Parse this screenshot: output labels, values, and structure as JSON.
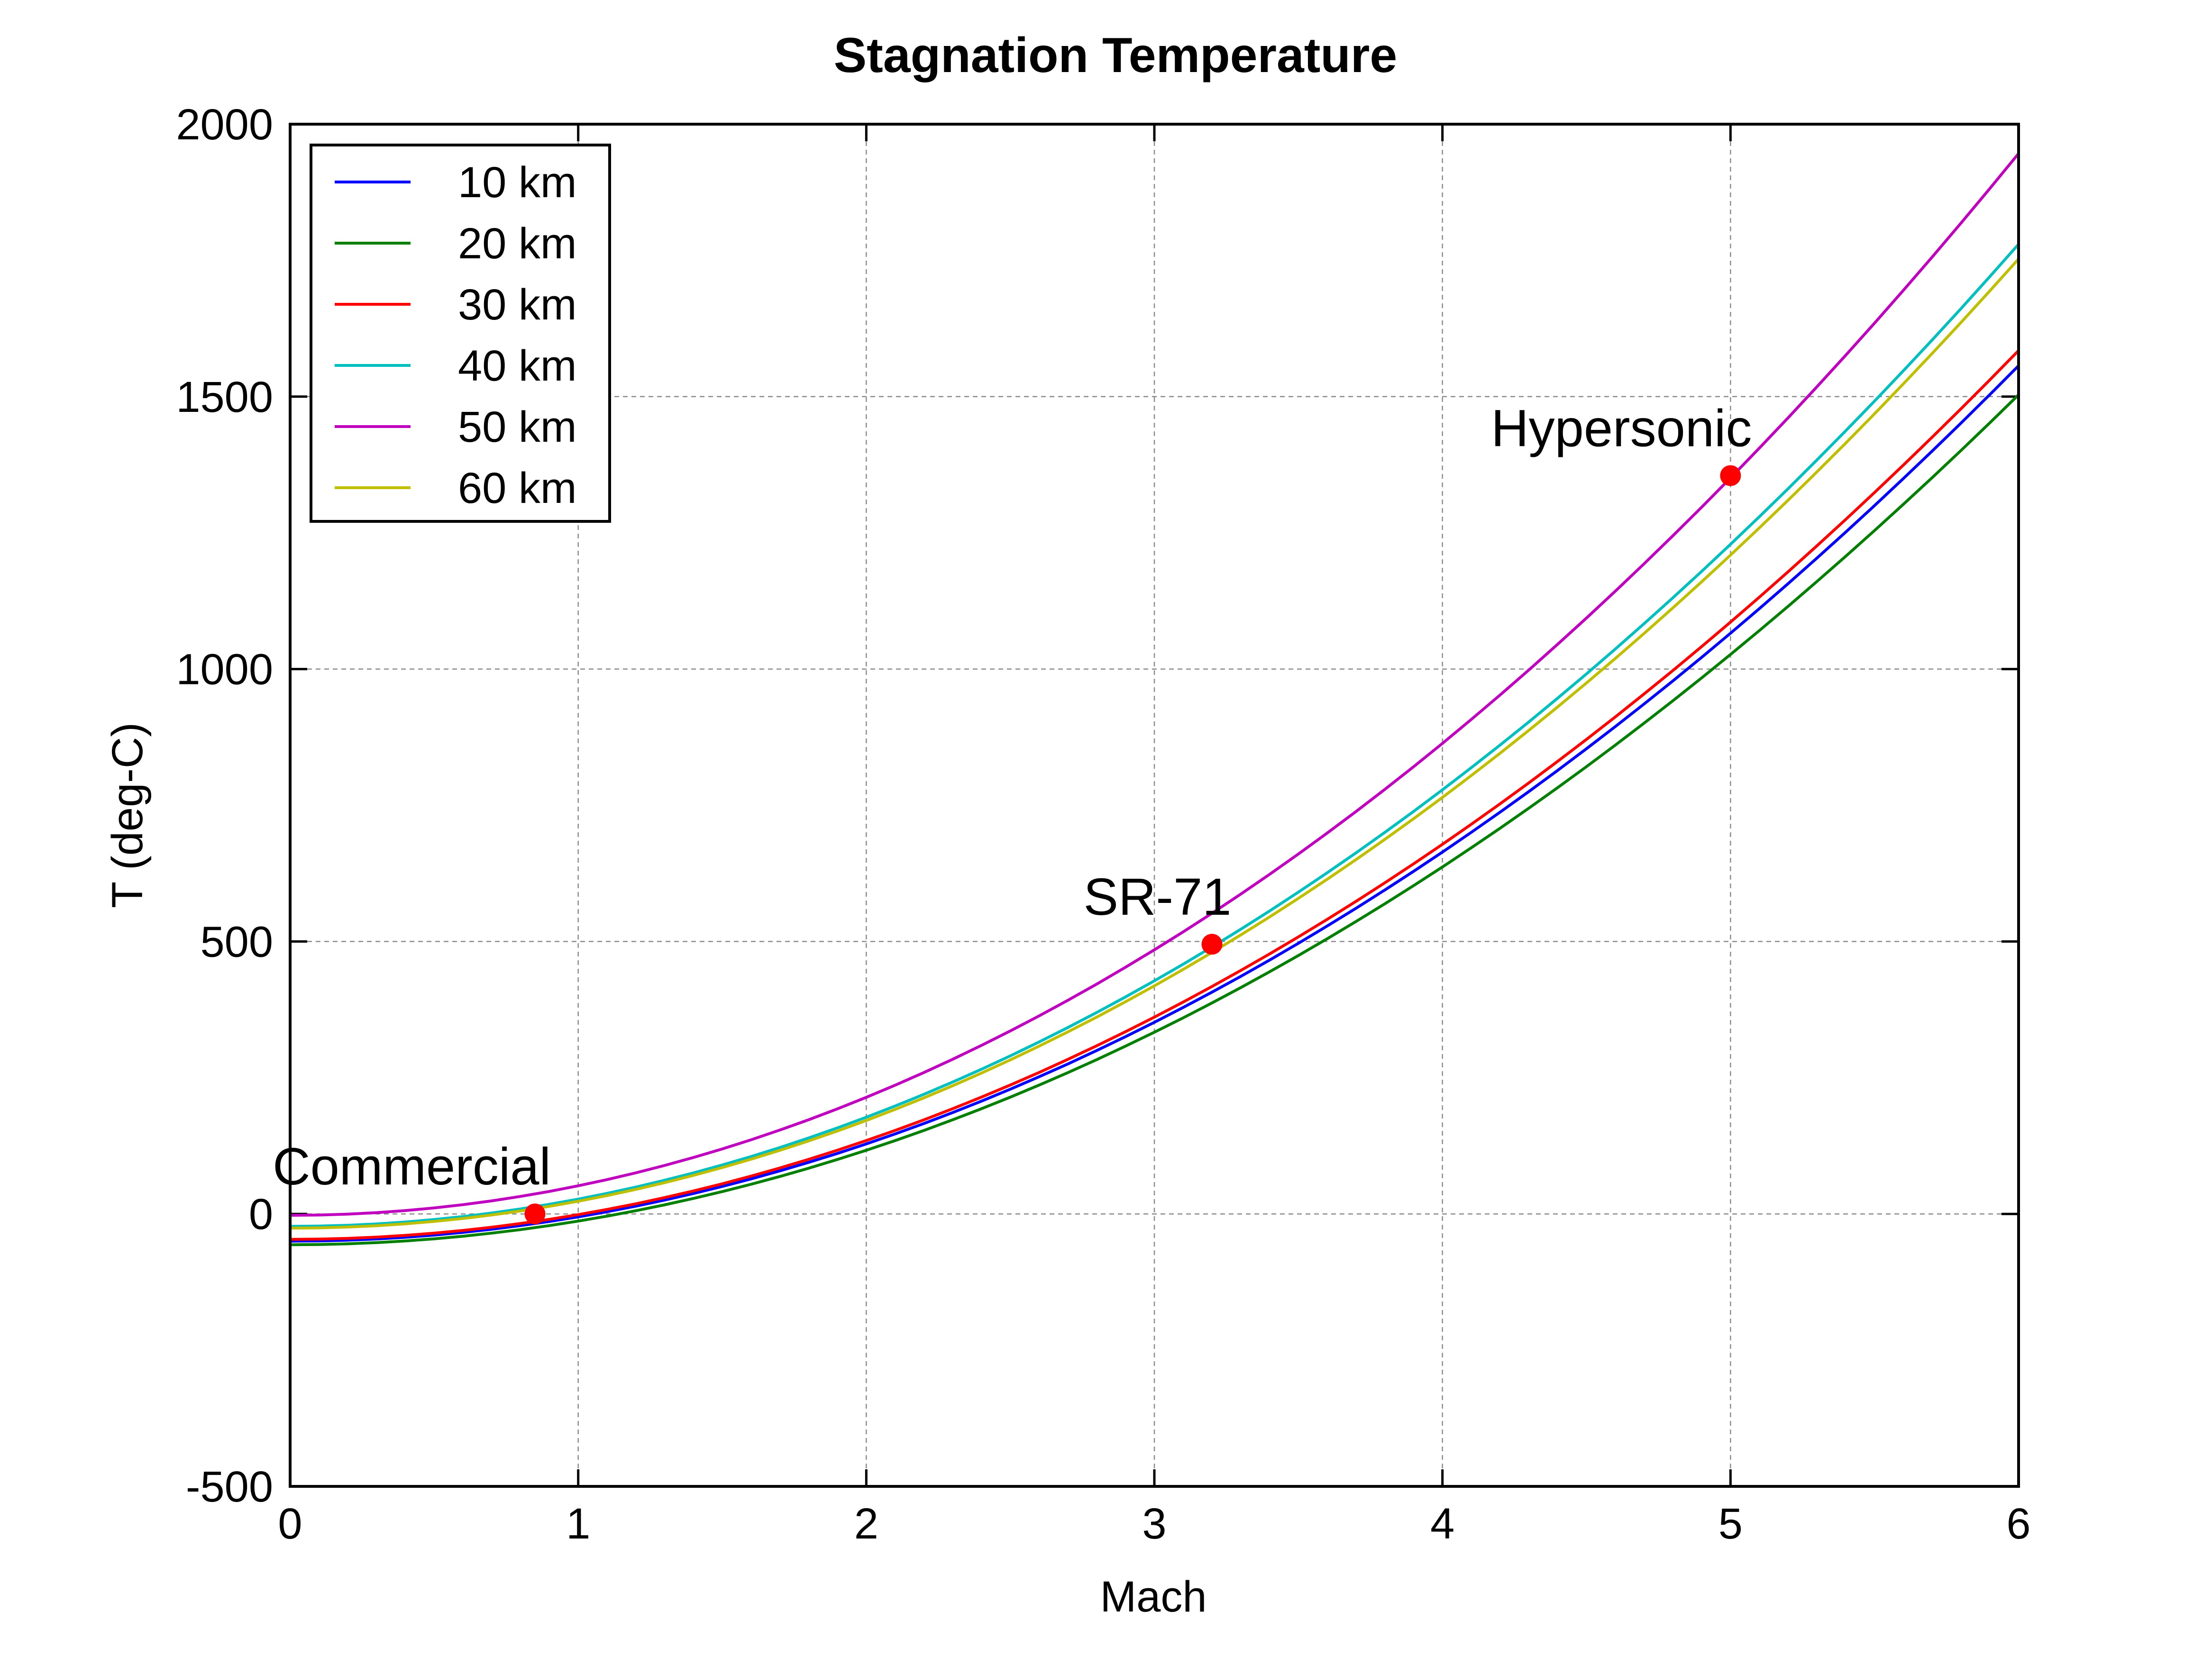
{
  "chart_data": {
    "type": "line",
    "title": "Stagnation Temperature",
    "xlabel": "Mach",
    "ylabel": "T (deg-C)",
    "xlim": [
      0,
      6
    ],
    "ylim": [
      -500,
      2000
    ],
    "xticks": [
      0,
      1,
      2,
      3,
      4,
      5,
      6
    ],
    "yticks": [
      -500,
      0,
      500,
      1000,
      1500,
      2000
    ],
    "grid": true,
    "legend_position": "top-left",
    "mach_step": 0.1,
    "series": [
      {
        "name": "10 km",
        "color": "#0000ff",
        "static_temp_c": -50
      },
      {
        "name": "20 km",
        "color": "#007f00",
        "static_temp_c": -56.5
      },
      {
        "name": "30 km",
        "color": "#ff0000",
        "static_temp_c": -46.6
      },
      {
        "name": "40 km",
        "color": "#00bfbf",
        "static_temp_c": -22.8
      },
      {
        "name": "50 km",
        "color": "#bf00bf",
        "static_temp_c": -2.5
      },
      {
        "name": "60 km",
        "color": "#bfbf00",
        "static_temp_c": -26.1
      }
    ],
    "annotations": [
      {
        "label": "Commercial",
        "x": 0.85,
        "y": 0,
        "marker_color": "#ff0000"
      },
      {
        "label": "SR-71",
        "x": 3.2,
        "y": 495,
        "marker_color": "#ff0000"
      },
      {
        "label": "Hypersonic",
        "x": 5.0,
        "y": 1355,
        "marker_color": "#ff0000"
      }
    ]
  }
}
